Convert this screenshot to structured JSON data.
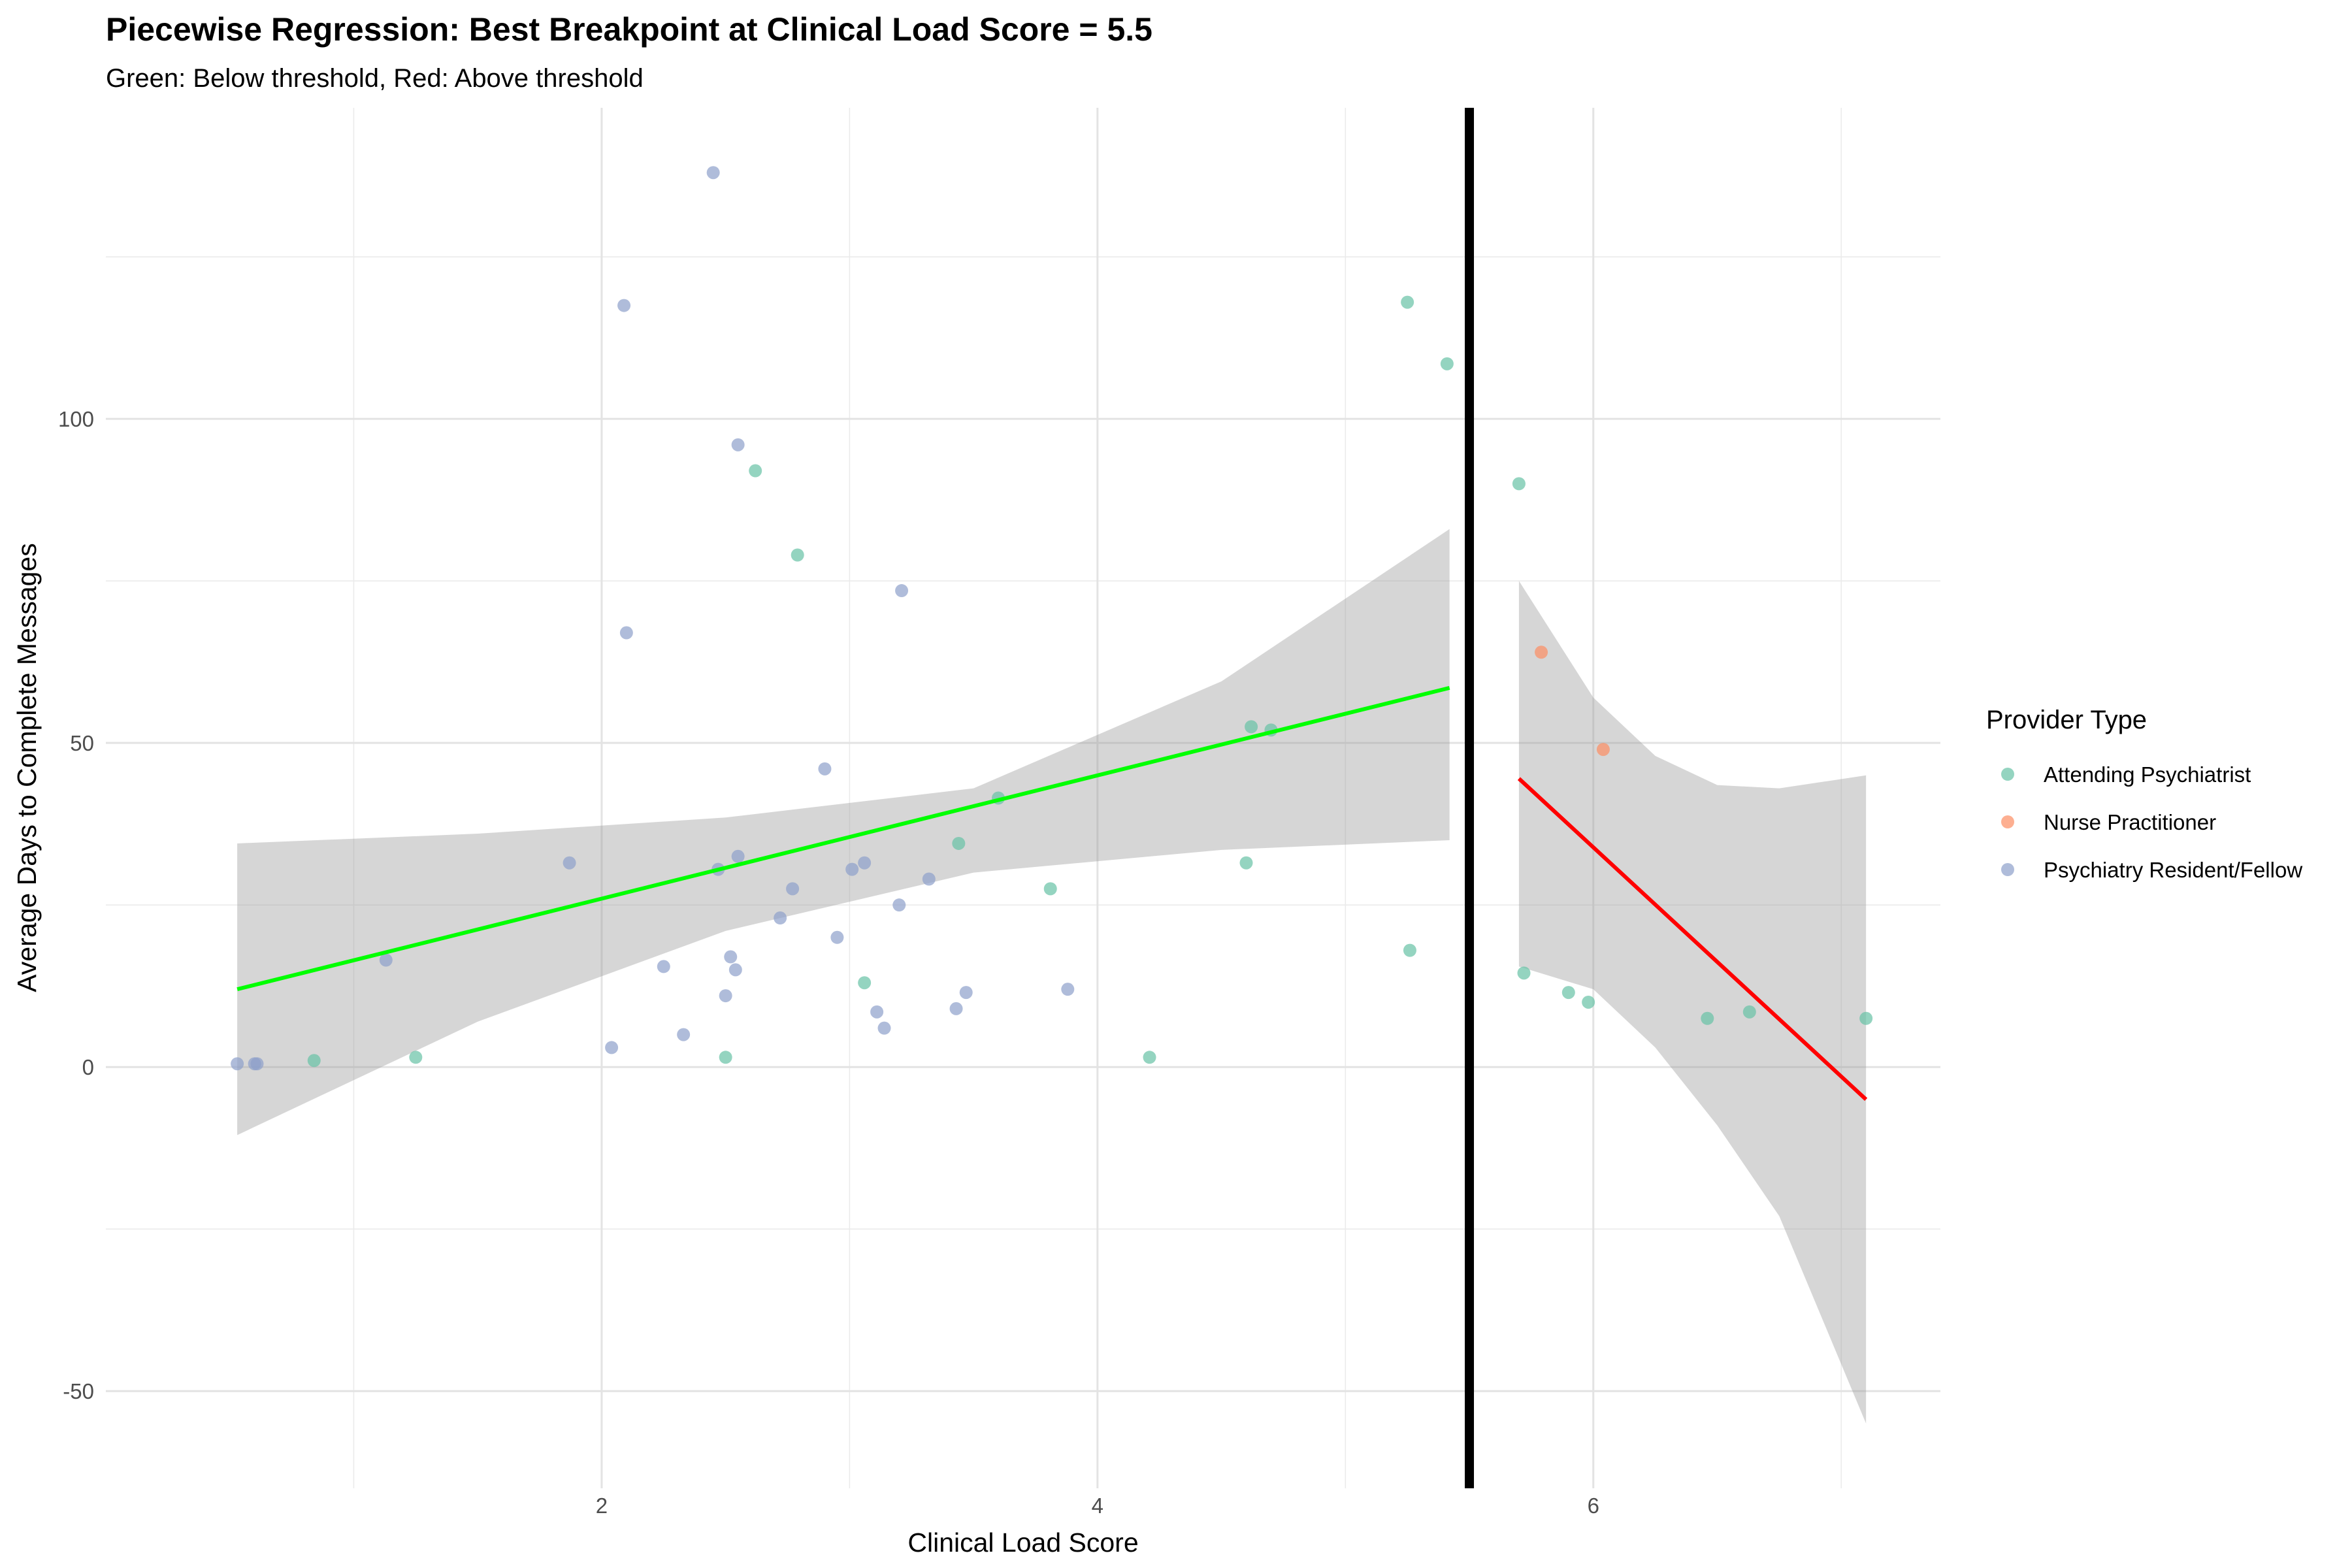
{
  "chart_data": {
    "type": "scatter",
    "title": "Piecewise Regression: Best Breakpoint at Clinical Load Score = 5.5",
    "subtitle": "Green: Below threshold, Red: Above threshold",
    "xlabel": "Clinical Load Score",
    "ylabel": "Average Days to Complete Messages",
    "xlim": [
      0.0,
      7.4
    ],
    "ylim": [
      -65,
      148
    ],
    "x_ticks": [
      2,
      4,
      6
    ],
    "y_ticks": [
      -50,
      0,
      50,
      100
    ],
    "grid": true,
    "breakpoint": 5.5,
    "breakpoint_color": "#000000",
    "legend": {
      "title": "Provider Type",
      "position": "right",
      "items": [
        {
          "label": "Attending Psychiatrist",
          "color": "#66c2a5"
        },
        {
          "label": "Nurse Practitioner",
          "color": "#fc8d62"
        },
        {
          "label": "Psychiatry Resident/Fellow",
          "color": "#8da0cb"
        }
      ]
    },
    "series": [
      {
        "name": "Attending Psychiatrist",
        "color": "#66c2a5",
        "points": [
          [
            0.84,
            1
          ],
          [
            1.25,
            1.5
          ],
          [
            2.5,
            1.5
          ],
          [
            2.62,
            92
          ],
          [
            2.79,
            79
          ],
          [
            3.06,
            13
          ],
          [
            3.44,
            34.5
          ],
          [
            3.6,
            41.5
          ],
          [
            3.81,
            27.5
          ],
          [
            4.21,
            1.5
          ],
          [
            4.6,
            31.5
          ],
          [
            4.62,
            52.5
          ],
          [
            4.7,
            52
          ],
          [
            5.25,
            118
          ],
          [
            5.26,
            18
          ],
          [
            5.41,
            108.5
          ],
          [
            5.7,
            90
          ],
          [
            5.72,
            14.5
          ],
          [
            5.9,
            11.5
          ],
          [
            5.98,
            10
          ],
          [
            6.46,
            7.5
          ],
          [
            6.63,
            8.5
          ],
          [
            7.1,
            7.5
          ]
        ]
      },
      {
        "name": "Nurse Practitioner",
        "color": "#fc8d62",
        "points": [
          [
            5.79,
            64
          ],
          [
            6.04,
            49
          ]
        ]
      },
      {
        "name": "Psychiatry Resident/Fellow",
        "color": "#8da0cb",
        "points": [
          [
            0.53,
            0.5
          ],
          [
            0.6,
            0.5
          ],
          [
            0.61,
            0.5
          ],
          [
            1.13,
            16.5
          ],
          [
            1.87,
            31.5
          ],
          [
            2.04,
            3
          ],
          [
            2.09,
            117.5
          ],
          [
            2.1,
            67
          ],
          [
            2.25,
            15.5
          ],
          [
            2.33,
            5
          ],
          [
            2.45,
            138
          ],
          [
            2.47,
            30.5
          ],
          [
            2.5,
            11
          ],
          [
            2.52,
            17
          ],
          [
            2.54,
            15
          ],
          [
            2.55,
            32.5
          ],
          [
            2.55,
            96
          ],
          [
            2.72,
            23
          ],
          [
            2.77,
            27.5
          ],
          [
            2.9,
            46
          ],
          [
            2.95,
            20
          ],
          [
            3.01,
            30.5
          ],
          [
            3.06,
            31.5
          ],
          [
            3.11,
            8.5
          ],
          [
            3.14,
            6
          ],
          [
            3.2,
            25
          ],
          [
            3.21,
            73.5
          ],
          [
            3.32,
            29
          ],
          [
            3.43,
            9
          ],
          [
            3.47,
            11.5
          ],
          [
            3.88,
            12
          ]
        ]
      }
    ],
    "fits": [
      {
        "segment": "below",
        "color": "#00ff00",
        "x": [
          0.53,
          5.42
        ],
        "y": [
          12,
          58.5
        ],
        "ci": [
          [
            0.53,
            -10.5,
            34.5
          ],
          [
            1.5,
            7,
            36
          ],
          [
            2.5,
            21,
            38.5
          ],
          [
            3.5,
            30,
            43
          ],
          [
            4.5,
            33.5,
            59.5
          ],
          [
            5.42,
            35,
            83
          ]
        ]
      },
      {
        "segment": "above",
        "color": "#ff0000",
        "x": [
          5.7,
          7.1
        ],
        "y": [
          44.5,
          -5
        ],
        "ci": [
          [
            5.7,
            15.5,
            75
          ],
          [
            6.0,
            12,
            57
          ],
          [
            6.25,
            3,
            48
          ],
          [
            6.5,
            -9,
            43.5
          ],
          [
            6.75,
            -23,
            43
          ],
          [
            7.1,
            -55,
            45
          ]
        ]
      }
    ]
  }
}
